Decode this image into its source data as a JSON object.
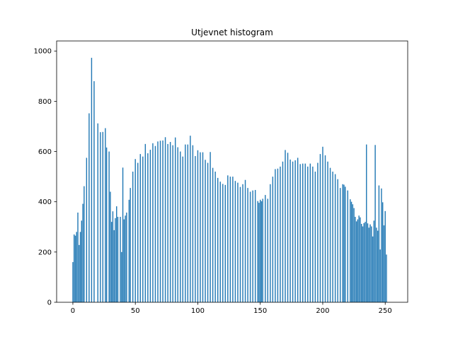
{
  "chart_data": {
    "type": "bar",
    "title": "Utjevnet histogram",
    "xlabel": "",
    "ylabel": "",
    "xlim": [
      -13,
      268
    ],
    "ylim": [
      0,
      1040
    ],
    "xticks": [
      0,
      50,
      100,
      150,
      200,
      250
    ],
    "yticks": [
      0,
      200,
      400,
      600,
      800,
      1000
    ],
    "grid": false,
    "bar_color": "#1f77b4",
    "bars": [
      {
        "x": 0,
        "y": 160
      },
      {
        "x": 1,
        "y": 270
      },
      {
        "x": 2,
        "y": 265
      },
      {
        "x": 3,
        "y": 280
      },
      {
        "x": 4,
        "y": 357
      },
      {
        "x": 5,
        "y": 228
      },
      {
        "x": 6,
        "y": 280
      },
      {
        "x": 7,
        "y": 325
      },
      {
        "x": 8,
        "y": 392
      },
      {
        "x": 9,
        "y": 462
      },
      {
        "x": 11,
        "y": 575
      },
      {
        "x": 13,
        "y": 752
      },
      {
        "x": 15,
        "y": 973
      },
      {
        "x": 17,
        "y": 880
      },
      {
        "x": 20,
        "y": 712
      },
      {
        "x": 22,
        "y": 677
      },
      {
        "x": 24,
        "y": 678
      },
      {
        "x": 26,
        "y": 693
      },
      {
        "x": 27,
        "y": 616
      },
      {
        "x": 29,
        "y": 600
      },
      {
        "x": 30,
        "y": 440
      },
      {
        "x": 31,
        "y": 320
      },
      {
        "x": 32,
        "y": 362
      },
      {
        "x": 33,
        "y": 287
      },
      {
        "x": 34,
        "y": 335
      },
      {
        "x": 35,
        "y": 382
      },
      {
        "x": 36,
        "y": 340
      },
      {
        "x": 38,
        "y": 340
      },
      {
        "x": 39,
        "y": 200
      },
      {
        "x": 40,
        "y": 536
      },
      {
        "x": 41,
        "y": 330
      },
      {
        "x": 42,
        "y": 345
      },
      {
        "x": 43,
        "y": 357
      },
      {
        "x": 45,
        "y": 408
      },
      {
        "x": 46,
        "y": 455
      },
      {
        "x": 48,
        "y": 520
      },
      {
        "x": 50,
        "y": 570
      },
      {
        "x": 52,
        "y": 555
      },
      {
        "x": 54,
        "y": 590
      },
      {
        "x": 56,
        "y": 580
      },
      {
        "x": 58,
        "y": 630
      },
      {
        "x": 60,
        "y": 593
      },
      {
        "x": 62,
        "y": 607
      },
      {
        "x": 64,
        "y": 633
      },
      {
        "x": 66,
        "y": 622
      },
      {
        "x": 68,
        "y": 640
      },
      {
        "x": 70,
        "y": 643
      },
      {
        "x": 72,
        "y": 644
      },
      {
        "x": 74,
        "y": 657
      },
      {
        "x": 76,
        "y": 630
      },
      {
        "x": 78,
        "y": 638
      },
      {
        "x": 80,
        "y": 625
      },
      {
        "x": 82,
        "y": 656
      },
      {
        "x": 84,
        "y": 617
      },
      {
        "x": 86,
        "y": 600
      },
      {
        "x": 88,
        "y": 580
      },
      {
        "x": 90,
        "y": 628
      },
      {
        "x": 92,
        "y": 628
      },
      {
        "x": 94,
        "y": 663
      },
      {
        "x": 96,
        "y": 625
      },
      {
        "x": 98,
        "y": 582
      },
      {
        "x": 100,
        "y": 605
      },
      {
        "x": 102,
        "y": 597
      },
      {
        "x": 104,
        "y": 597
      },
      {
        "x": 106,
        "y": 567
      },
      {
        "x": 108,
        "y": 555
      },
      {
        "x": 110,
        "y": 598
      },
      {
        "x": 112,
        "y": 535
      },
      {
        "x": 114,
        "y": 520
      },
      {
        "x": 116,
        "y": 495
      },
      {
        "x": 118,
        "y": 480
      },
      {
        "x": 120,
        "y": 471
      },
      {
        "x": 122,
        "y": 467
      },
      {
        "x": 124,
        "y": 505
      },
      {
        "x": 126,
        "y": 500
      },
      {
        "x": 128,
        "y": 500
      },
      {
        "x": 130,
        "y": 483
      },
      {
        "x": 132,
        "y": 476
      },
      {
        "x": 134,
        "y": 459
      },
      {
        "x": 136,
        "y": 470
      },
      {
        "x": 138,
        "y": 487
      },
      {
        "x": 140,
        "y": 455
      },
      {
        "x": 142,
        "y": 440
      },
      {
        "x": 144,
        "y": 445
      },
      {
        "x": 146,
        "y": 447
      },
      {
        "x": 148,
        "y": 403
      },
      {
        "x": 149,
        "y": 396
      },
      {
        "x": 150,
        "y": 408
      },
      {
        "x": 151,
        "y": 402
      },
      {
        "x": 152,
        "y": 412
      },
      {
        "x": 154,
        "y": 427
      },
      {
        "x": 156,
        "y": 412
      },
      {
        "x": 158,
        "y": 470
      },
      {
        "x": 160,
        "y": 500
      },
      {
        "x": 162,
        "y": 530
      },
      {
        "x": 164,
        "y": 532
      },
      {
        "x": 166,
        "y": 540
      },
      {
        "x": 168,
        "y": 560
      },
      {
        "x": 170,
        "y": 606
      },
      {
        "x": 172,
        "y": 595
      },
      {
        "x": 174,
        "y": 568
      },
      {
        "x": 176,
        "y": 560
      },
      {
        "x": 178,
        "y": 565
      },
      {
        "x": 180,
        "y": 575
      },
      {
        "x": 182,
        "y": 550
      },
      {
        "x": 184,
        "y": 552
      },
      {
        "x": 186,
        "y": 552
      },
      {
        "x": 188,
        "y": 540
      },
      {
        "x": 190,
        "y": 552
      },
      {
        "x": 192,
        "y": 540
      },
      {
        "x": 194,
        "y": 520
      },
      {
        "x": 196,
        "y": 555
      },
      {
        "x": 198,
        "y": 590
      },
      {
        "x": 200,
        "y": 619
      },
      {
        "x": 202,
        "y": 585
      },
      {
        "x": 204,
        "y": 560
      },
      {
        "x": 206,
        "y": 535
      },
      {
        "x": 208,
        "y": 520
      },
      {
        "x": 210,
        "y": 510
      },
      {
        "x": 212,
        "y": 490
      },
      {
        "x": 214,
        "y": 455
      },
      {
        "x": 216,
        "y": 470
      },
      {
        "x": 217,
        "y": 468
      },
      {
        "x": 218,
        "y": 460
      },
      {
        "x": 220,
        "y": 445
      },
      {
        "x": 222,
        "y": 410
      },
      {
        "x": 223,
        "y": 400
      },
      {
        "x": 224,
        "y": 390
      },
      {
        "x": 225,
        "y": 375
      },
      {
        "x": 226,
        "y": 340
      },
      {
        "x": 227,
        "y": 322
      },
      {
        "x": 228,
        "y": 330
      },
      {
        "x": 229,
        "y": 345
      },
      {
        "x": 230,
        "y": 338
      },
      {
        "x": 231,
        "y": 312
      },
      {
        "x": 232,
        "y": 302
      },
      {
        "x": 233,
        "y": 315
      },
      {
        "x": 234,
        "y": 320
      },
      {
        "x": 235,
        "y": 628
      },
      {
        "x": 236,
        "y": 314
      },
      {
        "x": 237,
        "y": 297
      },
      {
        "x": 238,
        "y": 310
      },
      {
        "x": 239,
        "y": 302
      },
      {
        "x": 240,
        "y": 262
      },
      {
        "x": 241,
        "y": 325
      },
      {
        "x": 242,
        "y": 626
      },
      {
        "x": 243,
        "y": 297
      },
      {
        "x": 244,
        "y": 285
      },
      {
        "x": 245,
        "y": 465
      },
      {
        "x": 246,
        "y": 210
      },
      {
        "x": 247,
        "y": 453
      },
      {
        "x": 248,
        "y": 398
      },
      {
        "x": 249,
        "y": 306
      },
      {
        "x": 250,
        "y": 363
      },
      {
        "x": 251,
        "y": 190
      }
    ]
  }
}
